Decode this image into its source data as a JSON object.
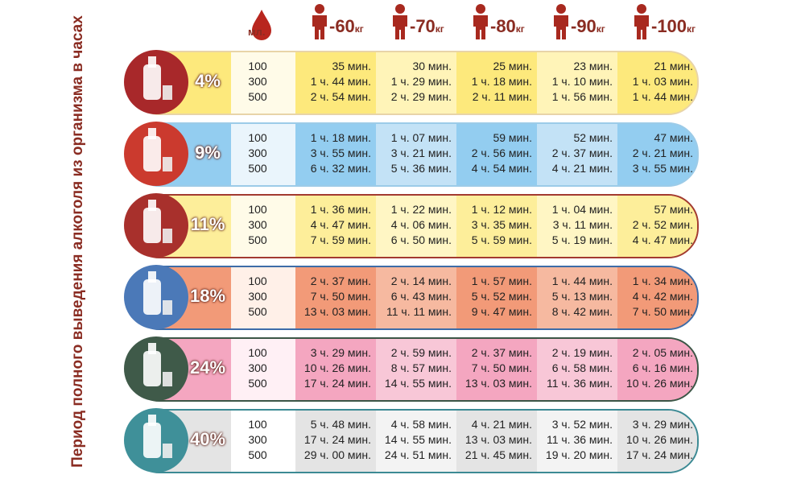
{
  "side_title": "Период полного выведения алкоголя из организма в часах",
  "header": {
    "volume_label": "мл.",
    "weights": [
      {
        "value": "-60",
        "unit": "кг"
      },
      {
        "value": "-70",
        "unit": "кг"
      },
      {
        "value": "-80",
        "unit": "кг"
      },
      {
        "value": "-90",
        "unit": "кг"
      },
      {
        "value": "-100",
        "unit": "кг"
      }
    ]
  },
  "rows": [
    {
      "percent": "4%",
      "volumes": [
        "100",
        "300",
        "500"
      ],
      "times": [
        [
          "35 мин.",
          "30 мин.",
          "25 мин.",
          "23 мин.",
          "21 мин."
        ],
        [
          "1 ч. 44 мин.",
          "1 ч. 29 мин.",
          "1 ч. 18 мин.",
          "1 ч. 10 мин.",
          "1 ч. 03 мин."
        ],
        [
          "2 ч. 54 мин.",
          "2 ч. 29 мин.",
          "2 ч. 11 мин.",
          "1 ч. 56 мин.",
          "1 ч. 44 мин."
        ]
      ]
    },
    {
      "percent": "9%",
      "volumes": [
        "100",
        "300",
        "500"
      ],
      "times": [
        [
          "1 ч. 18 мин.",
          "1 ч. 07 мин.",
          "59 мин.",
          "52 мин.",
          "47 мин."
        ],
        [
          "3 ч. 55 мин.",
          "3 ч. 21 мин.",
          "2 ч. 56 мин.",
          "2 ч. 37 мин.",
          "2 ч. 21 мин."
        ],
        [
          "6 ч. 32 мин.",
          "5 ч. 36 мин.",
          "4 ч. 54 мин.",
          "4 ч. 21 мин.",
          "3 ч. 55 мин."
        ]
      ]
    },
    {
      "percent": "11%",
      "volumes": [
        "100",
        "300",
        "500"
      ],
      "times": [
        [
          "1 ч. 36 мин.",
          "1 ч. 22 мин.",
          "1 ч. 12 мин.",
          "1 ч. 04 мин.",
          "57 мин."
        ],
        [
          "4 ч. 47 мин.",
          "4 ч. 06 мин.",
          "3 ч. 35 мин.",
          "3 ч. 11 мин.",
          "2 ч. 52 мин."
        ],
        [
          "7 ч. 59 мин.",
          "6 ч. 50 мин.",
          "5 ч. 59 мин.",
          "5 ч. 19 мин.",
          "4 ч. 47 мин."
        ]
      ]
    },
    {
      "percent": "18%",
      "volumes": [
        "100",
        "300",
        "500"
      ],
      "times": [
        [
          "2 ч. 37 мин.",
          "2 ч. 14 мин.",
          "1 ч. 57 мин.",
          "1 ч. 44 мин.",
          "1 ч. 34 мин."
        ],
        [
          "7 ч. 50 мин.",
          "6 ч. 43 мин.",
          "5 ч. 52 мин.",
          "5 ч. 13 мин.",
          "4 ч. 42 мин."
        ],
        [
          "13 ч. 03 мин.",
          "11 ч. 11 мин.",
          "9 ч. 47 мин.",
          "8 ч. 42 мин.",
          "7 ч. 50 мин."
        ]
      ]
    },
    {
      "percent": "24%",
      "volumes": [
        "100",
        "300",
        "500"
      ],
      "times": [
        [
          "3 ч. 29 мин.",
          "2 ч. 59 мин.",
          "2 ч. 37 мин.",
          "2 ч. 19 мин.",
          "2 ч. 05 мин."
        ],
        [
          "10 ч. 26 мин.",
          "8 ч. 57 мин.",
          "7 ч. 50 мин.",
          "6 ч. 58 мин.",
          "6 ч. 16 мин."
        ],
        [
          "17 ч. 24 мин.",
          "14 ч. 55 мин.",
          "13 ч. 03 мин.",
          "11 ч. 36 мин.",
          "10 ч. 26 мин."
        ]
      ]
    },
    {
      "percent": "40%",
      "volumes": [
        "100",
        "300",
        "500"
      ],
      "times": [
        [
          "5 ч. 48 мин.",
          "4 ч. 58 мин.",
          "4 ч. 21 мин.",
          "3 ч. 52 мин.",
          "3 ч. 29 мин."
        ],
        [
          "17 ч. 24 мин.",
          "14 ч. 55 мин.",
          "13 ч. 03 мин.",
          "11 ч. 36 мин.",
          "10 ч. 26 мин."
        ],
        [
          "29 ч. 00 мин.",
          "24 ч. 51 мин.",
          "21 ч. 45 мин.",
          "19 ч. 20 мин.",
          "17 ч. 24 мин."
        ]
      ]
    }
  ]
}
